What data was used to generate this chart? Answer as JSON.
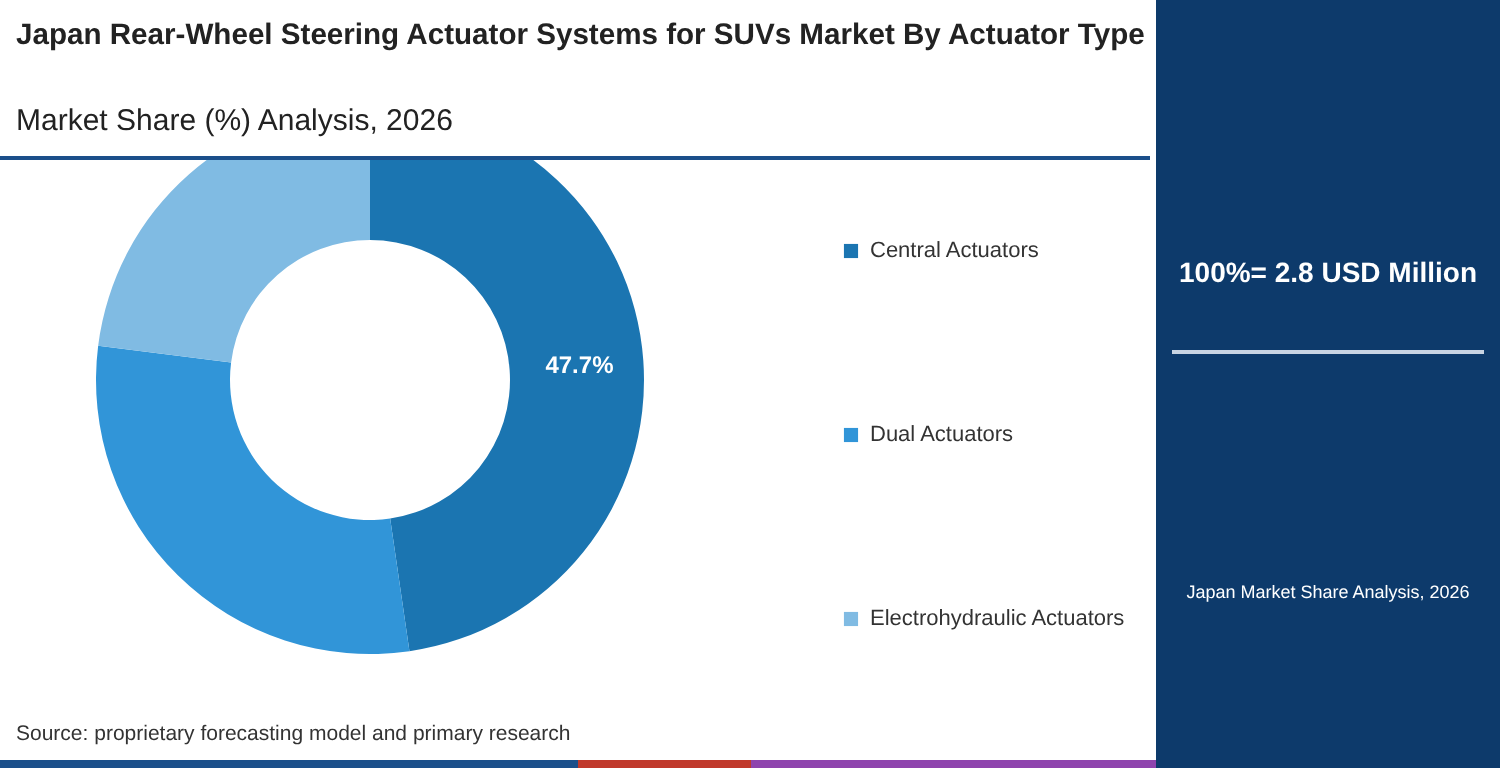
{
  "chart_data": {
    "type": "donut",
    "title": "Japan Rear-Wheel Steering Actuator Systems for SUVs Market By Actuator Type",
    "subtitle": "Market Share (%) Analysis, 2026",
    "categories": [
      "Central Actuators",
      "Dual Actuators",
      "Electrohydraulic Actuators"
    ],
    "values": [
      47.7,
      29.3,
      23.0
    ],
    "colors": [
      "#1b75b1",
      "#3195d8",
      "#80bbe3"
    ],
    "value_labels": [
      "47.7%",
      null,
      null
    ],
    "legend": "right",
    "annotations": [
      "100%= 2.8 USD Million",
      "Japan Market Share Analysis, 2026",
      "Source: proprietary forecasting model and primary research"
    ]
  }
}
